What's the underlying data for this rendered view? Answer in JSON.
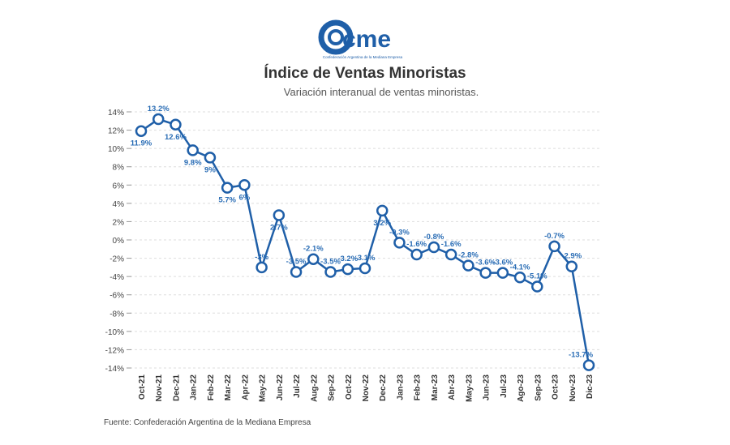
{
  "header": {
    "logo_text": "cme",
    "logo_subtitle": "Confederación Argentina de la Mediana Empresa",
    "title": "Índice de Ventas Minoristas",
    "subtitle": "Variación interanual de ventas minoristas."
  },
  "footer": {
    "source": "Fuente: Confederación Argentina de la Mediana Empresa"
  },
  "colors": {
    "line": "#1f5fa8",
    "label": "#2a6db5",
    "grid": "#dddddd"
  },
  "chart_data": {
    "type": "line",
    "title": "Índice de Ventas Minoristas",
    "subtitle": "Variación interanual de ventas minoristas.",
    "xlabel": "",
    "ylabel": "",
    "ylim": [
      -14,
      14
    ],
    "yticks": [
      "14%",
      "12%",
      "10%",
      "8%",
      "6%",
      "4%",
      "2%",
      "0%",
      "-2%",
      "-4%",
      "-6%",
      "-8%",
      "-10%",
      "-12%",
      "-14%"
    ],
    "grid": true,
    "categories": [
      "Oct-21",
      "Nov-21",
      "Dec-21",
      "Jan-22",
      "Feb-22",
      "Mar-22",
      "Apr-22",
      "May-22",
      "Jun-22",
      "Jul-22",
      "Aug-22",
      "Sep-22",
      "Oct-22",
      "Nov-22",
      "Dec-22",
      "Jan-23",
      "Feb-23",
      "Mar-23",
      "Abr-23",
      "May-23",
      "Jun-23",
      "Jul-23",
      "Ago-23",
      "Sep-23",
      "Oct-23",
      "Nov-23",
      "Dic-23"
    ],
    "values": [
      11.9,
      13.2,
      12.6,
      9.8,
      9,
      5.7,
      6,
      -3,
      2.7,
      -3.5,
      -2.1,
      -3.5,
      -3.2,
      -3.1,
      3.2,
      -0.3,
      -1.6,
      -0.8,
      -1.6,
      -2.8,
      -3.6,
      -3.6,
      -4.1,
      -5.1,
      -0.7,
      -2.9,
      -13.7
    ],
    "data_labels": [
      "11.9%",
      "13.2%",
      "12.6%",
      "9.8%",
      "9%",
      "5.7%",
      "6%",
      "-3%",
      "2.7%",
      "-3.5%",
      "-2.1%",
      "-3.5%",
      "-3.2%",
      "-3.1%",
      "3.2%",
      "-0.3%",
      "-1.6%",
      "-0.8%",
      "-1.6%",
      "-2.8%",
      "-3.6%",
      "-3.6%",
      "-4.1%",
      "-5.1%",
      "-0.7%",
      "-2.9%",
      "-13.7%"
    ]
  }
}
